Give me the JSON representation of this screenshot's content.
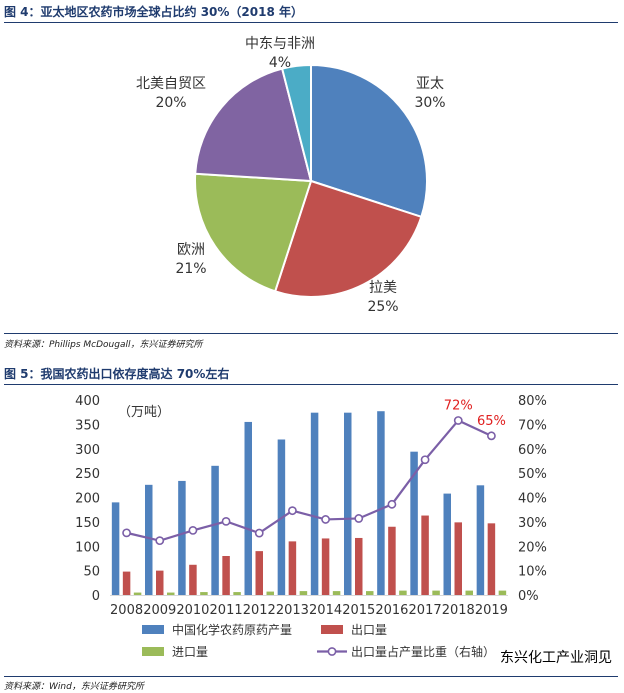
{
  "figure4": {
    "title": "图 4：亚太地区农药市场全球占比约 30%（2018 年）",
    "source": "资料来源：Phillips McDougall，东兴证券研究所"
  },
  "figure5": {
    "title": "图 5：我国农药出口依存度高达 70%左右",
    "source": "资料来源：Wind，东兴证券研究所",
    "watermark": "东兴化工产业洞见"
  },
  "colors": {
    "asia": "#4f81bd",
    "latam": "#c0504d",
    "europe": "#9bbb59",
    "namerica": "#8064a2",
    "mideast": "#4bacc6",
    "line": "#7b5fa7",
    "title": "#1f3b6e",
    "highlight": "#e02020"
  },
  "chart_data": [
    {
      "type": "pie",
      "title": "亚太地区农药市场全球占比约 30%（2018 年）",
      "start_angle_deg": 0,
      "direction": "clockwise",
      "slices": [
        {
          "name": "亚太",
          "value": 30,
          "label": "30%",
          "color": "#4f81bd"
        },
        {
          "name": "拉美",
          "value": 25,
          "label": "25%",
          "color": "#c0504d"
        },
        {
          "name": "欧洲",
          "value": 21,
          "label": "21%",
          "color": "#9bbb59"
        },
        {
          "name": "北美自贸区",
          "value": 20,
          "label": "20%",
          "color": "#8064a2"
        },
        {
          "name": "中东与非洲",
          "value": 4,
          "label": "4%",
          "color": "#4bacc6"
        }
      ]
    },
    {
      "type": "bar",
      "title": "我国农药出口依存度高达 70%左右",
      "unit_label": "（万吨）",
      "categories": [
        "2008",
        "2009",
        "2010",
        "2011",
        "2012",
        "2013",
        "2014",
        "2015",
        "2016",
        "2017",
        "2018",
        "2019"
      ],
      "y_left": {
        "min": 0,
        "max": 400,
        "ticks": [
          "0",
          "50",
          "100",
          "150",
          "200",
          "250",
          "300",
          "350",
          "400"
        ]
      },
      "y_right": {
        "min": 0,
        "max": 80,
        "ticks": [
          "0%",
          "10%",
          "20%",
          "30%",
          "40%",
          "50%",
          "60%",
          "70%",
          "80%"
        ]
      },
      "series": [
        {
          "name": "中国化学农药原药产量",
          "kind": "bar",
          "axis": "left",
          "color": "#4f81bd",
          "values": [
            190,
            226,
            234,
            265,
            355,
            319,
            374,
            374,
            377,
            294,
            208,
            225
          ]
        },
        {
          "name": "出口量",
          "kind": "bar",
          "axis": "left",
          "color": "#c0504d",
          "values": [
            48,
            50,
            62,
            80,
            90,
            110,
            116,
            117,
            140,
            163,
            149,
            147
          ]
        },
        {
          "name": "进口量",
          "kind": "bar",
          "axis": "left",
          "color": "#9bbb59",
          "values": [
            5,
            5,
            6,
            6,
            7,
            8,
            8,
            8,
            9,
            9,
            9,
            9
          ]
        },
        {
          "name": "出口量占产量比重（右轴）",
          "kind": "line",
          "axis": "right",
          "color": "#7b5fa7",
          "values": [
            25.5,
            22.3,
            26.5,
            30.2,
            25.4,
            34.6,
            31,
            31.4,
            37.2,
            55.5,
            71.6,
            65.3
          ]
        }
      ],
      "annotations": [
        {
          "index": 10,
          "text": "72%"
        },
        {
          "index": 11,
          "text": "65%"
        }
      ]
    }
  ]
}
